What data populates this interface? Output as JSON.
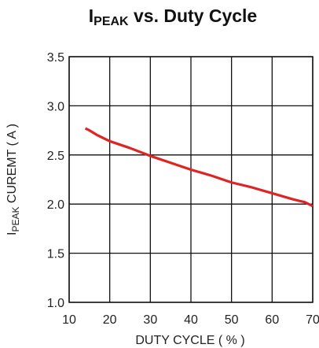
{
  "chart_data": {
    "type": "line",
    "title": [
      "I",
      "PEAK",
      " vs. Duty Cycle"
    ],
    "x_label": "DUTY CYCLE ( % )",
    "y_label": [
      "I",
      "PEAK",
      " CUREMT ( A )"
    ],
    "x": [
      14,
      15,
      17,
      20,
      25,
      30,
      35,
      40,
      45,
      50,
      55,
      60,
      65,
      68,
      70
    ],
    "series": [
      {
        "name": "IPEAK",
        "color": "#e02424",
        "values": [
          2.77,
          2.75,
          2.7,
          2.64,
          2.57,
          2.49,
          2.42,
          2.35,
          2.29,
          2.22,
          2.17,
          2.11,
          2.05,
          2.02,
          1.98
        ]
      }
    ],
    "xlim": [
      10,
      70
    ],
    "xticks": [
      10,
      20,
      30,
      40,
      50,
      60,
      70
    ],
    "ylim": [
      1.0,
      3.5
    ],
    "yticks": [
      {
        "value": 1.0,
        "label": "1.0"
      },
      1.5,
      {
        "value": 2.0,
        "label": "2.0"
      },
      2.5,
      {
        "value": 3.0,
        "label": "3.0"
      },
      3.5
    ],
    "grid": true
  }
}
